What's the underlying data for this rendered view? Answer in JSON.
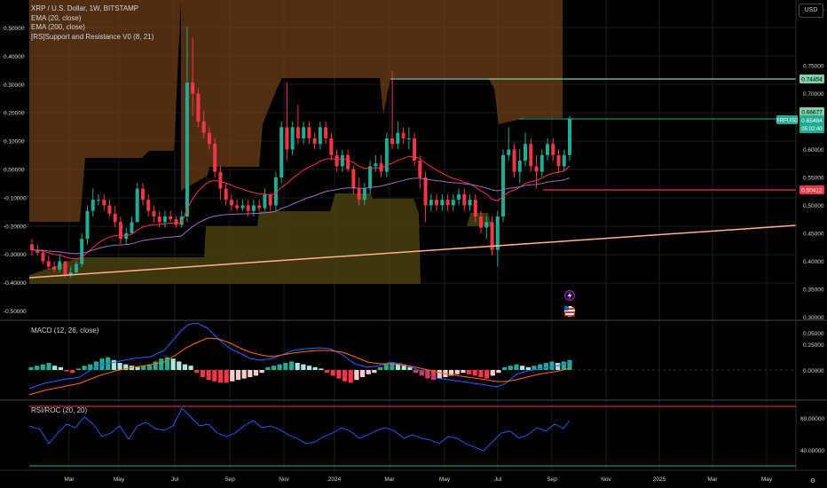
{
  "header": {
    "title": "XRP / U.S. Dollar, 1W, BITSTAMP",
    "indicators": [
      "EMA (20, close)",
      "EMA (200, close)",
      "[RS]Support and Resistance V0 (8, 21)"
    ],
    "currency_button": "USD"
  },
  "main": {
    "left_axis_ticks": [
      "0.50000",
      "0.40000",
      "0.30000",
      "0.20000",
      "0.10000",
      "0.00000",
      "-0.10000",
      "-0.20000",
      "-0.30000",
      "-0.40000",
      "-0.50000"
    ],
    "right_axis_ticks": [
      "0.85000",
      "0.75000",
      "0.70000",
      "0.65000",
      "0.60000",
      "0.55000",
      "0.50000",
      "0.45000",
      "0.40000",
      "0.35000",
      "0.30000",
      "0.25000"
    ],
    "resistance_label": "0.74454",
    "green_label": "0.66677",
    "symbol_label": "XRPUSD",
    "price_label": "0.65484",
    "countdown_label": "05:02:40",
    "support_label": "0.50412",
    "colors": {
      "up": "#22ab94",
      "down": "#f23645",
      "ema20": "#f23645",
      "ema200": "#9c6bbd",
      "resistance": "#7ed1a8",
      "support": "#f23645",
      "trend": "#ffb38a"
    }
  },
  "macd": {
    "title": "MACD (12, 26, close)",
    "ticks": [
      "0.05000",
      "0.00000"
    ]
  },
  "rsi": {
    "title": "RSI/ROC (20, 20)",
    "ticks": [
      "60.00000",
      "40.00000"
    ]
  },
  "time_axis": {
    "labels": [
      "Mar",
      "May",
      "Jul",
      "Sep",
      "Nov",
      "2024",
      "Mar",
      "May",
      "Jul",
      "Sep",
      "Nov",
      "2025",
      "Mar",
      "May"
    ]
  },
  "chart_data": {
    "type": "candlestick",
    "title": "XRP / U.S. Dollar, 1W, BITSTAMP",
    "y_range": [
      0.22,
      0.93
    ],
    "resistance_level": 0.74454,
    "support_level": 0.50412,
    "last_price": 0.65484,
    "candles": [
      [
        0.43,
        0.44,
        0.41,
        0.42
      ],
      [
        0.42,
        0.43,
        0.41,
        0.415
      ],
      [
        0.415,
        0.42,
        0.395,
        0.4
      ],
      [
        0.4,
        0.41,
        0.385,
        0.39
      ],
      [
        0.39,
        0.4,
        0.38,
        0.385
      ],
      [
        0.385,
        0.41,
        0.38,
        0.4
      ],
      [
        0.4,
        0.4,
        0.37,
        0.375
      ],
      [
        0.375,
        0.39,
        0.37,
        0.38
      ],
      [
        0.38,
        0.4,
        0.375,
        0.395
      ],
      [
        0.395,
        0.45,
        0.39,
        0.44
      ],
      [
        0.44,
        0.5,
        0.43,
        0.49
      ],
      [
        0.49,
        0.53,
        0.48,
        0.51
      ],
      [
        0.51,
        0.52,
        0.5,
        0.51
      ],
      [
        0.51,
        0.52,
        0.49,
        0.5
      ],
      [
        0.5,
        0.51,
        0.48,
        0.485
      ],
      [
        0.485,
        0.5,
        0.46,
        0.47
      ],
      [
        0.47,
        0.48,
        0.43,
        0.44
      ],
      [
        0.44,
        0.46,
        0.43,
        0.45
      ],
      [
        0.45,
        0.48,
        0.45,
        0.47
      ],
      [
        0.47,
        0.54,
        0.47,
        0.53
      ],
      [
        0.53,
        0.54,
        0.5,
        0.51
      ],
      [
        0.51,
        0.52,
        0.48,
        0.49
      ],
      [
        0.49,
        0.5,
        0.47,
        0.48
      ],
      [
        0.48,
        0.49,
        0.46,
        0.47
      ],
      [
        0.47,
        0.49,
        0.46,
        0.48
      ],
      [
        0.48,
        0.49,
        0.47,
        0.475
      ],
      [
        0.475,
        0.48,
        0.46,
        0.465
      ],
      [
        0.465,
        0.49,
        0.46,
        0.48
      ],
      [
        0.48,
        0.82,
        0.47,
        0.72
      ],
      [
        0.72,
        0.8,
        0.66,
        0.7
      ],
      [
        0.7,
        0.71,
        0.64,
        0.65
      ],
      [
        0.65,
        0.67,
        0.62,
        0.63
      ],
      [
        0.63,
        0.64,
        0.6,
        0.61
      ],
      [
        0.61,
        0.62,
        0.55,
        0.56
      ],
      [
        0.56,
        0.57,
        0.51,
        0.53
      ],
      [
        0.53,
        0.54,
        0.5,
        0.51
      ],
      [
        0.51,
        0.52,
        0.49,
        0.5
      ],
      [
        0.5,
        0.51,
        0.49,
        0.495
      ],
      [
        0.495,
        0.51,
        0.49,
        0.5
      ],
      [
        0.5,
        0.51,
        0.48,
        0.49
      ],
      [
        0.49,
        0.51,
        0.48,
        0.5
      ],
      [
        0.5,
        0.51,
        0.49,
        0.495
      ],
      [
        0.495,
        0.53,
        0.49,
        0.52
      ],
      [
        0.52,
        0.52,
        0.49,
        0.5
      ],
      [
        0.5,
        0.56,
        0.49,
        0.55
      ],
      [
        0.55,
        0.65,
        0.54,
        0.64
      ],
      [
        0.64,
        0.72,
        0.58,
        0.6
      ],
      [
        0.6,
        0.65,
        0.59,
        0.64
      ],
      [
        0.64,
        0.68,
        0.61,
        0.62
      ],
      [
        0.62,
        0.65,
        0.61,
        0.64
      ],
      [
        0.64,
        0.65,
        0.61,
        0.62
      ],
      [
        0.62,
        0.63,
        0.6,
        0.61
      ],
      [
        0.61,
        0.65,
        0.6,
        0.64
      ],
      [
        0.64,
        0.65,
        0.61,
        0.62
      ],
      [
        0.62,
        0.63,
        0.58,
        0.59
      ],
      [
        0.59,
        0.6,
        0.56,
        0.57
      ],
      [
        0.57,
        0.6,
        0.56,
        0.59
      ],
      [
        0.59,
        0.6,
        0.56,
        0.565
      ],
      [
        0.565,
        0.57,
        0.52,
        0.53
      ],
      [
        0.53,
        0.55,
        0.5,
        0.51
      ],
      [
        0.51,
        0.54,
        0.5,
        0.53
      ],
      [
        0.53,
        0.58,
        0.52,
        0.57
      ],
      [
        0.57,
        0.59,
        0.56,
        0.575
      ],
      [
        0.575,
        0.59,
        0.55,
        0.56
      ],
      [
        0.56,
        0.63,
        0.55,
        0.62
      ],
      [
        0.62,
        0.74,
        0.6,
        0.61
      ],
      [
        0.61,
        0.65,
        0.6,
        0.63
      ],
      [
        0.63,
        0.64,
        0.61,
        0.62
      ],
      [
        0.62,
        0.64,
        0.6,
        0.62
      ],
      [
        0.62,
        0.63,
        0.57,
        0.58
      ],
      [
        0.58,
        0.59,
        0.53,
        0.55
      ],
      [
        0.55,
        0.56,
        0.47,
        0.5
      ],
      [
        0.5,
        0.52,
        0.49,
        0.51
      ],
      [
        0.51,
        0.52,
        0.49,
        0.5
      ],
      [
        0.5,
        0.52,
        0.49,
        0.51
      ],
      [
        0.51,
        0.52,
        0.49,
        0.5
      ],
      [
        0.5,
        0.52,
        0.49,
        0.51
      ],
      [
        0.51,
        0.53,
        0.5,
        0.52
      ],
      [
        0.52,
        0.53,
        0.49,
        0.5
      ],
      [
        0.5,
        0.52,
        0.49,
        0.51
      ],
      [
        0.51,
        0.52,
        0.47,
        0.48
      ],
      [
        0.48,
        0.49,
        0.45,
        0.46
      ],
      [
        0.46,
        0.48,
        0.44,
        0.47
      ],
      [
        0.47,
        0.48,
        0.41,
        0.42
      ],
      [
        0.42,
        0.49,
        0.39,
        0.48
      ],
      [
        0.48,
        0.6,
        0.47,
        0.59
      ],
      [
        0.59,
        0.64,
        0.58,
        0.6
      ],
      [
        0.6,
        0.61,
        0.55,
        0.56
      ],
      [
        0.56,
        0.6,
        0.54,
        0.58
      ],
      [
        0.58,
        0.63,
        0.57,
        0.61
      ],
      [
        0.61,
        0.62,
        0.56,
        0.57
      ],
      [
        0.57,
        0.59,
        0.53,
        0.56
      ],
      [
        0.56,
        0.6,
        0.55,
        0.59
      ],
      [
        0.59,
        0.62,
        0.58,
        0.61
      ],
      [
        0.61,
        0.62,
        0.58,
        0.59
      ],
      [
        0.59,
        0.6,
        0.56,
        0.57
      ],
      [
        0.57,
        0.6,
        0.56,
        0.59
      ],
      [
        0.59,
        0.66,
        0.58,
        0.655
      ]
    ]
  }
}
